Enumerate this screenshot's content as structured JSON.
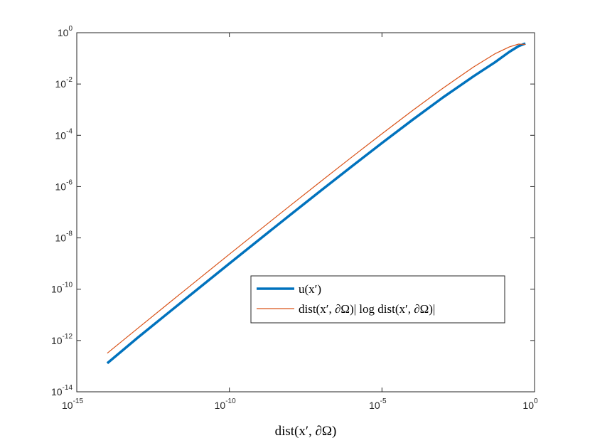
{
  "colors": {
    "series_u": "#0072BD",
    "series_ref": "#D95319",
    "axes": "#262626",
    "background": "#ffffff"
  },
  "chart_data": {
    "type": "line",
    "xscale": "log",
    "yscale": "log",
    "xlim": [
      1e-15,
      1
    ],
    "ylim": [
      1e-14,
      1
    ],
    "xticks": [
      {
        "value": 1e-15,
        "base": "10",
        "exp": "-15"
      },
      {
        "value": 1e-10,
        "base": "10",
        "exp": "-10"
      },
      {
        "value": 1e-05,
        "base": "10",
        "exp": "-5"
      },
      {
        "value": 1,
        "base": "10",
        "exp": "0"
      }
    ],
    "yticks": [
      {
        "value": 1e-14,
        "base": "10",
        "exp": "-14"
      },
      {
        "value": 1e-12,
        "base": "10",
        "exp": "-12"
      },
      {
        "value": 1e-10,
        "base": "10",
        "exp": "-10"
      },
      {
        "value": 1e-08,
        "base": "10",
        "exp": "-8"
      },
      {
        "value": 1e-06,
        "base": "10",
        "exp": "-6"
      },
      {
        "value": 0.0001,
        "base": "10",
        "exp": "-4"
      },
      {
        "value": 0.01,
        "base": "10",
        "exp": "-2"
      },
      {
        "value": 1,
        "base": "10",
        "exp": "0"
      }
    ],
    "xlabel": "dist(x′, ∂Ω)",
    "ylabel": "",
    "title": "",
    "grid": false,
    "legend": {
      "location": "lower-right inside axes"
    },
    "series": [
      {
        "name": "u(x′)",
        "color": "#0072BD",
        "linewidth": 3.5,
        "x": [
          1e-14,
          1e-13,
          1e-12,
          1e-11,
          1e-10,
          1e-09,
          1e-08,
          1e-07,
          1e-06,
          1e-05,
          0.0001,
          0.001,
          0.01,
          0.05,
          0.15,
          0.3,
          0.5
        ],
        "y": [
          1.3e-13,
          1.3e-12,
          1.2e-11,
          1.1e-10,
          1e-09,
          9e-09,
          8e-08,
          7e-07,
          6e-06,
          5e-05,
          0.0004,
          0.003,
          0.02,
          0.07,
          0.18,
          0.3,
          0.38
        ]
      },
      {
        "name": "dist(x′, ∂Ω)| log dist(x′, ∂Ω)|",
        "color": "#D95319",
        "linewidth": 1.2,
        "x": [
          1e-14,
          1e-13,
          1e-12,
          1e-11,
          1e-10,
          1e-09,
          1e-08,
          1e-07,
          1e-06,
          1e-05,
          0.0001,
          0.001,
          0.01,
          0.05,
          0.15,
          0.3,
          0.5
        ],
        "y": [
          3.2e-13,
          2.99e-12,
          2.76e-11,
          2.53e-10,
          2.3e-09,
          2.07e-08,
          1.84e-07,
          1.61e-06,
          1.38e-05,
          0.000115,
          0.00092,
          0.0069,
          0.046,
          0.15,
          0.28,
          0.36,
          0.35
        ]
      }
    ]
  }
}
